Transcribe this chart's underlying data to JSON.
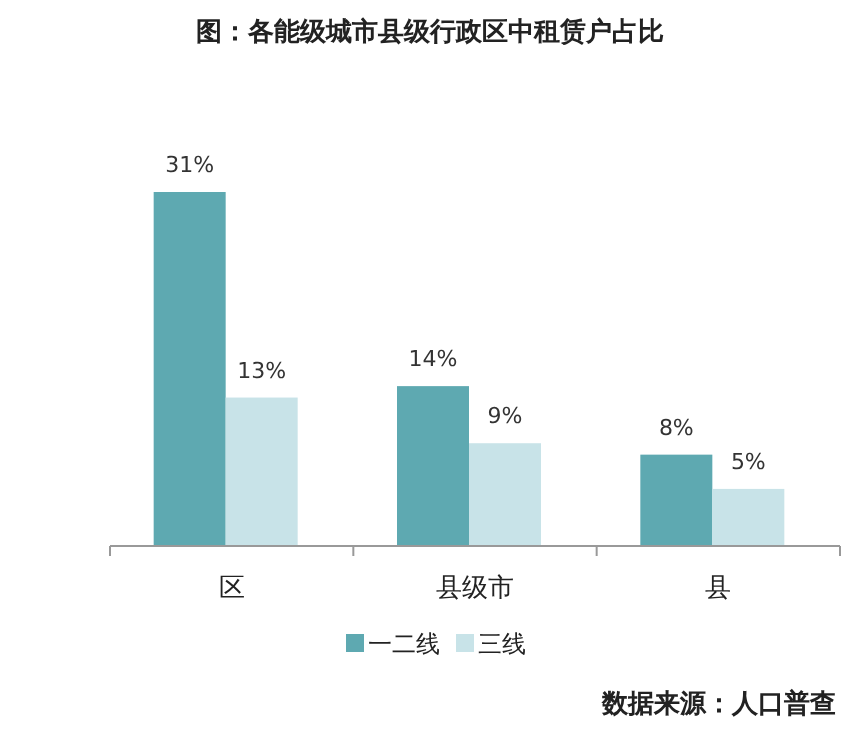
{
  "chart_data": {
    "type": "bar",
    "title": "图：各能级城市县级行政区中租赁户占比",
    "categories": [
      "区",
      "县级市",
      "县"
    ],
    "series": [
      {
        "name": "一二线",
        "color": "#5ea9b1",
        "values": [
          31,
          14,
          8
        ],
        "value_labels": [
          "31%",
          "14%",
          "8%"
        ]
      },
      {
        "name": "三线",
        "color": "#c8e3e8",
        "values": [
          13,
          9,
          5
        ],
        "value_labels": [
          "13%",
          "9%",
          "5%"
        ]
      }
    ],
    "legend": "bottom",
    "annotations": [
      "数据来源：人口普查"
    ]
  }
}
